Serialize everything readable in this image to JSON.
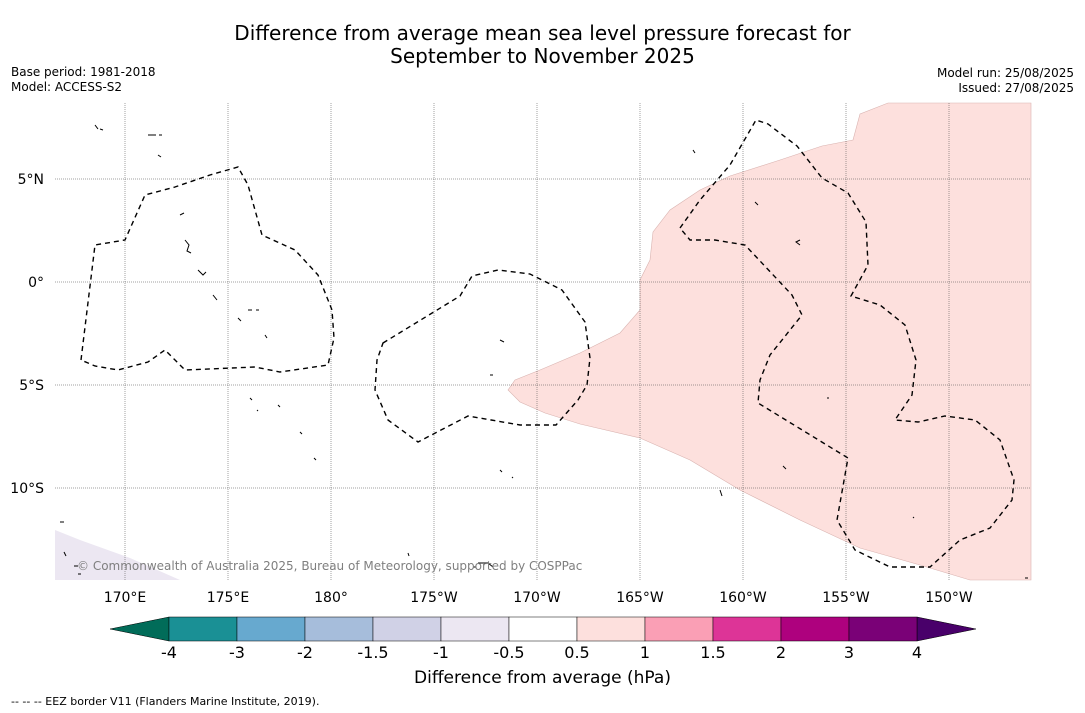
{
  "title_line1": "Difference from average mean sea level pressure forecast for",
  "title_line2": "September to November 2025",
  "left_meta": {
    "base_period": "Base period: 1981-2018",
    "model": "Model: ACCESS-S2"
  },
  "right_meta": {
    "model_run": "Model run: 25/08/2025",
    "issued": "Issued: 27/08/2025"
  },
  "lat_labels": [
    "5°N",
    "0°",
    "5°S",
    "10°S"
  ],
  "lon_labels": [
    "170°E",
    "175°E",
    "180°",
    "175°W",
    "170°W",
    "165°W",
    "160°W",
    "155°W",
    "150°W"
  ],
  "copyright": "© Commonwealth of Australia 2025, Bureau of Meteorology, supported by COSPPac",
  "colorbar": {
    "ticks": [
      "-4",
      "-3",
      "-2",
      "-1.5",
      "-1",
      "-0.5",
      "0.5",
      "1",
      "1.5",
      "2",
      "3",
      "4"
    ],
    "colors": [
      "#1a9095",
      "#67a9cf",
      "#a6bddb",
      "#d0d1e6",
      "#ece7f2",
      "#ffffff",
      "#fde0dd",
      "#fa9fb5",
      "#dd3497",
      "#ae017e",
      "#7a0177"
    ],
    "under_color": "#016c59",
    "over_color": "#49006a",
    "title": "Difference from average (hPa)"
  },
  "anomaly_fill_color": "#fde0dd",
  "footer": "--  --  -- EEZ border V11 (Flanders Marine Institute, 2019)."
}
